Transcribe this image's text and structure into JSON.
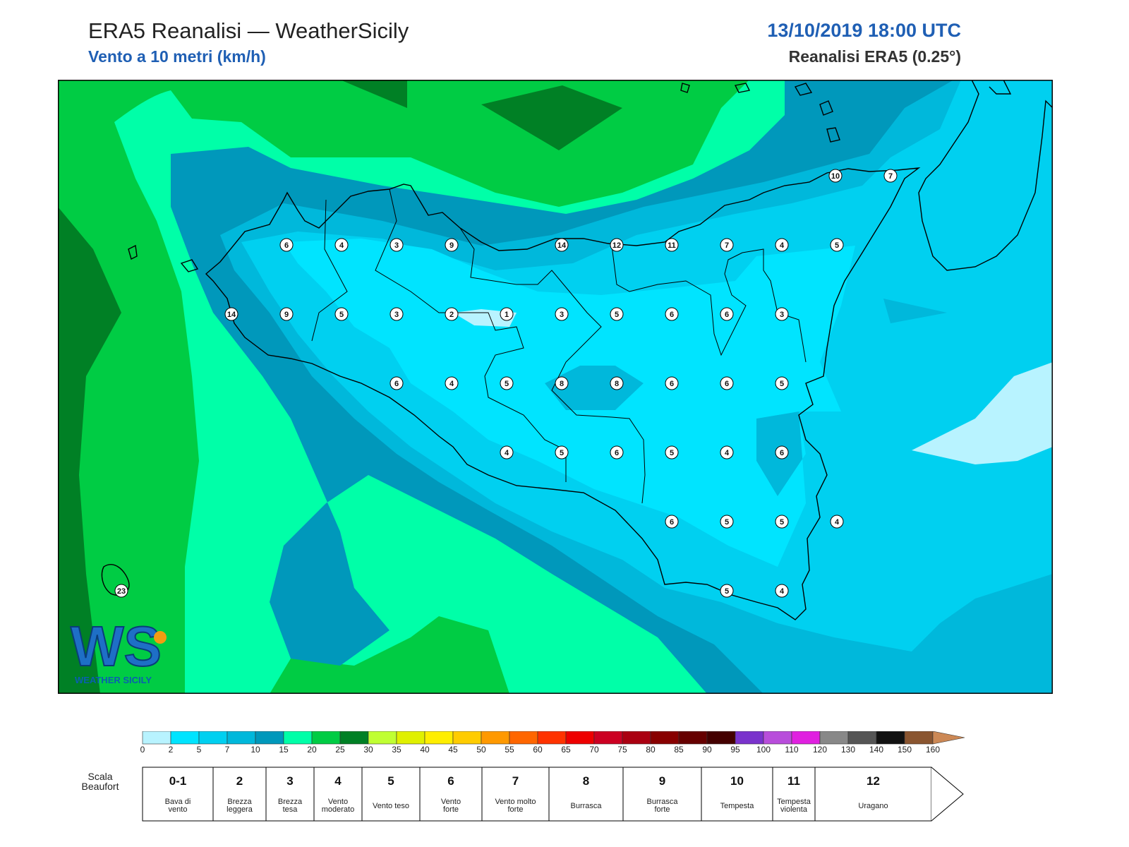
{
  "header": {
    "title": "ERA5 Reanalisi — WeatherSicily",
    "subtitle": "Vento a 10 metri (km/h)",
    "datetime": "13/10/2019 18:00 UTC",
    "model": "Reanalisi ERA5 (0.25°)"
  },
  "colors": {
    "pale_blue": "#b8f3ff",
    "cyan": "#00e4ff",
    "sky": "#00d0f0",
    "blue_1": "#00b8db",
    "blue_2": "#0098bb",
    "sea_green": "#00ffa8",
    "green": "#00cc44",
    "dark_green": "#008025"
  },
  "logo": {
    "text": "WS",
    "subtext": "WEATHER SICILY"
  },
  "map_labels": [
    {
      "v": "6"
    },
    {
      "v": "4"
    },
    {
      "v": "3"
    },
    {
      "v": "9"
    },
    {
      "v": "14"
    },
    {
      "v": "12"
    },
    {
      "v": "11"
    },
    {
      "v": "7"
    },
    {
      "v": "4"
    },
    {
      "v": "5"
    },
    {
      "v": "14"
    },
    {
      "v": "9"
    },
    {
      "v": "5"
    },
    {
      "v": "3"
    },
    {
      "v": "2"
    },
    {
      "v": "1"
    },
    {
      "v": "3"
    },
    {
      "v": "5"
    },
    {
      "v": "6"
    },
    {
      "v": "6"
    },
    {
      "v": "3"
    },
    {
      "v": "6"
    },
    {
      "v": "4"
    },
    {
      "v": "5"
    },
    {
      "v": "8"
    },
    {
      "v": "8"
    },
    {
      "v": "6"
    },
    {
      "v": "6"
    },
    {
      "v": "5"
    },
    {
      "v": "4"
    },
    {
      "v": "5"
    },
    {
      "v": "6"
    },
    {
      "v": "5"
    },
    {
      "v": "4"
    },
    {
      "v": "6"
    },
    {
      "v": "6"
    },
    {
      "v": "5"
    },
    {
      "v": "5"
    },
    {
      "v": "4"
    },
    {
      "v": "5"
    },
    {
      "v": "4"
    },
    {
      "v": "23"
    },
    {
      "v": "10"
    },
    {
      "v": "7"
    }
  ],
  "legend": {
    "ticks": [
      "0",
      "2",
      "5",
      "7",
      "10",
      "15",
      "20",
      "25",
      "30",
      "35",
      "40",
      "45",
      "50",
      "55",
      "60",
      "65",
      "70",
      "75",
      "80",
      "85",
      "90",
      "95",
      "100",
      "110",
      "120",
      "130",
      "140",
      "150",
      "160"
    ],
    "colors": [
      "#b8f3ff",
      "#00e4ff",
      "#00d0f0",
      "#00b8db",
      "#0098bb",
      "#00ffa8",
      "#00cc44",
      "#008025",
      "#c0ff33",
      "#e0f000",
      "#ffee00",
      "#ffcc00",
      "#ff9900",
      "#ff6600",
      "#ff3300",
      "#ee0000",
      "#cc0022",
      "#aa0011",
      "#880000",
      "#660000",
      "#440000",
      "#7a33cc",
      "#b84ddb",
      "#e020e0",
      "#888888",
      "#555555",
      "#111111",
      "#8a5530",
      "#cc8855"
    ]
  },
  "beaufort": {
    "title": "Scala Beaufort",
    "cells": [
      {
        "num": "0-1",
        "name": "Bava di vento"
      },
      {
        "num": "2",
        "name": "Brezza leggera"
      },
      {
        "num": "3",
        "name": "Brezza tesa"
      },
      {
        "num": "4",
        "name": "Vento moderato"
      },
      {
        "num": "5",
        "name": "Vento teso"
      },
      {
        "num": "6",
        "name": "Vento forte"
      },
      {
        "num": "7",
        "name": "Vento molto forte"
      },
      {
        "num": "8",
        "name": "Burrasca"
      },
      {
        "num": "9",
        "name": "Burrasca forte"
      },
      {
        "num": "10",
        "name": "Tempesta"
      },
      {
        "num": "11",
        "name": "Tempesta violenta"
      },
      {
        "num": "12",
        "name": "Uragano"
      }
    ]
  }
}
